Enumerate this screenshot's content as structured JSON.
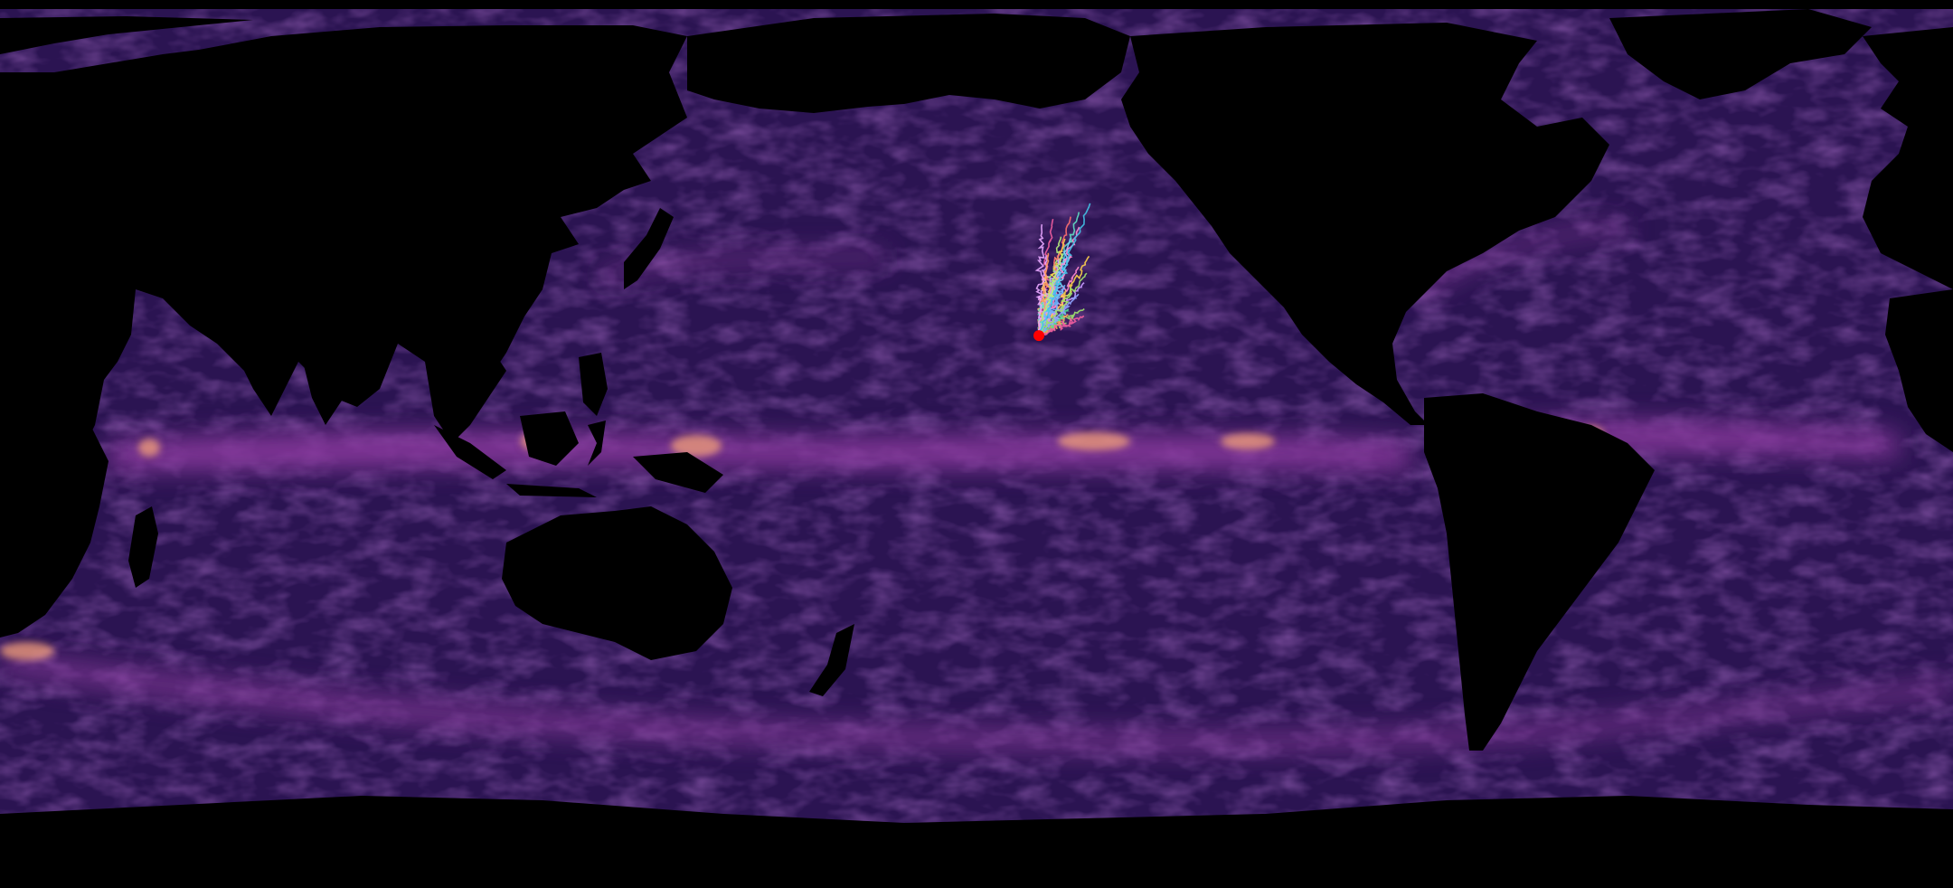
{
  "map": {
    "kind": "global ocean current speed field with drifter trajectories",
    "projection": "equirectangular",
    "lon_range": [
      20,
      380
    ],
    "lat_range": [
      -78,
      90
    ],
    "colormap": "magma",
    "land_color": "#000000",
    "ocean_base_color": "#2b1452",
    "band_color": "#8a3a9e",
    "hotspot_color": "#f4a07a"
  },
  "trajectories": {
    "count": 28,
    "release_point": {
      "lon": 211.5,
      "lat": 26.5
    },
    "release_marker_color": "#ff0000",
    "end_region": {
      "lon_min": 212,
      "lon_max": 221,
      "lat_min": 30,
      "lat_max": 52
    },
    "palette": [
      "#7fd4ff",
      "#ff8ad1",
      "#9ee26b",
      "#ffd24a",
      "#5fe0c3",
      "#c89bff",
      "#ff9a5c",
      "#6ab7ff",
      "#f25ea0",
      "#b6f27a",
      "#42c4e8",
      "#e8a6ff",
      "#ffcf7a",
      "#4ee39a",
      "#ff6f6f",
      "#8fa4ff"
    ]
  }
}
